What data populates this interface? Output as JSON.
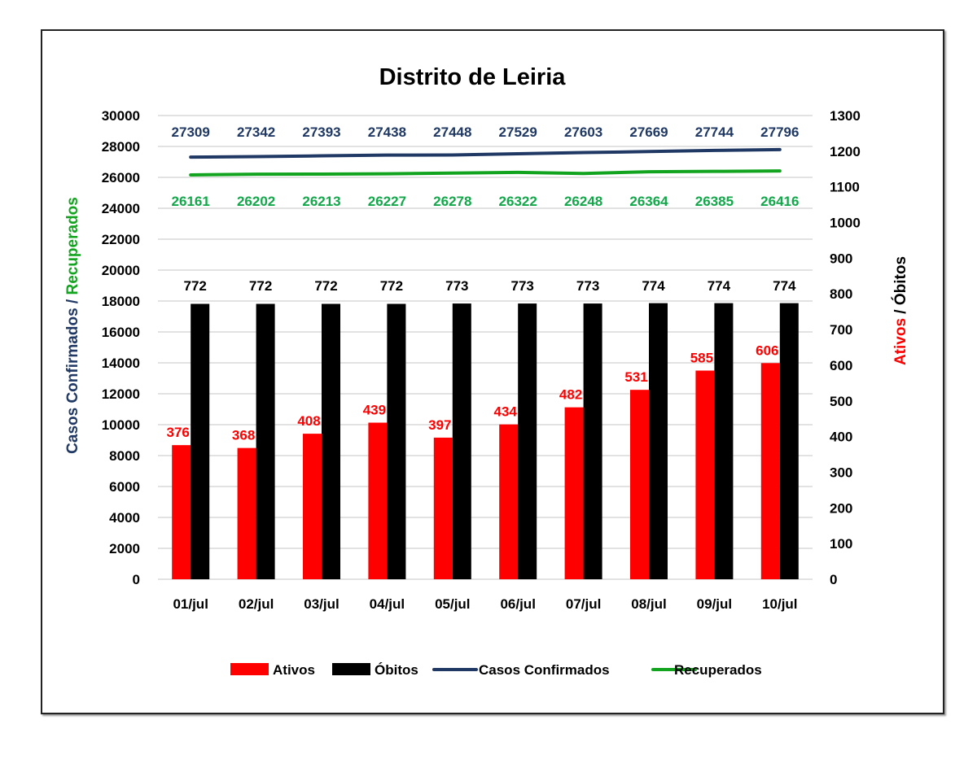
{
  "chart_data": {
    "type": "bar",
    "title": "Distrito de Leiria",
    "categories": [
      "01/jul",
      "02/jul",
      "03/jul",
      "04/jul",
      "05/jul",
      "06/jul",
      "07/jul",
      "08/jul",
      "09/jul",
      "10/jul"
    ],
    "series": [
      {
        "name": "Ativos",
        "type": "bar",
        "axis": "right",
        "color": "#ff0000",
        "values": [
          376,
          368,
          408,
          439,
          397,
          434,
          482,
          531,
          585,
          606
        ]
      },
      {
        "name": "Óbitos",
        "type": "bar",
        "axis": "right",
        "color": "#000000",
        "values": [
          772,
          772,
          772,
          772,
          773,
          773,
          773,
          774,
          774,
          774
        ]
      },
      {
        "name": "Casos Confirmados",
        "type": "line",
        "axis": "left",
        "color": "#1f3864",
        "values": [
          27309,
          27342,
          27393,
          27438,
          27448,
          27529,
          27603,
          27669,
          27744,
          27796
        ]
      },
      {
        "name": "Recuperados",
        "type": "line",
        "axis": "left",
        "color": "#12a41e",
        "values": [
          26161,
          26202,
          26213,
          26227,
          26278,
          26322,
          26248,
          26364,
          26385,
          26416
        ]
      }
    ],
    "left_axis": {
      "title_parts": [
        {
          "text": "Casos Confirmados",
          "color": "#1f3864"
        },
        {
          "text": " / ",
          "color": "#1f3864"
        },
        {
          "text": "Recuperados",
          "color": "#12a41e"
        }
      ],
      "ylim": [
        0,
        30000
      ],
      "ticks": [
        "0",
        "2000",
        "4000",
        "6000",
        "8000",
        "10000",
        "12000",
        "14000",
        "16000",
        "18000",
        "20000",
        "22000",
        "24000",
        "26000",
        "28000",
        "30000"
      ]
    },
    "right_axis": {
      "title_parts": [
        {
          "text": "Ativos",
          "color": "#ff0000"
        },
        {
          "text": " / ",
          "color": "#000000"
        },
        {
          "text": "Óbitos",
          "color": "#000000"
        }
      ],
      "ylim": [
        0,
        1300
      ],
      "ticks": [
        "0",
        "100",
        "200",
        "300",
        "400",
        "500",
        "600",
        "700",
        "800",
        "900",
        "1000",
        "1100",
        "1200",
        "1300"
      ]
    },
    "grid": true,
    "legend": {
      "position": "bottom",
      "items": [
        {
          "label": "Ativos",
          "kind": "box",
          "color": "#ff0000"
        },
        {
          "label": "Óbitos",
          "kind": "box",
          "color": "#000000"
        },
        {
          "label": "Casos Confirmados",
          "kind": "line",
          "color": "#1f3864"
        },
        {
          "label": "Recuperados",
          "kind": "line",
          "color": "#12a41e"
        }
      ]
    }
  }
}
